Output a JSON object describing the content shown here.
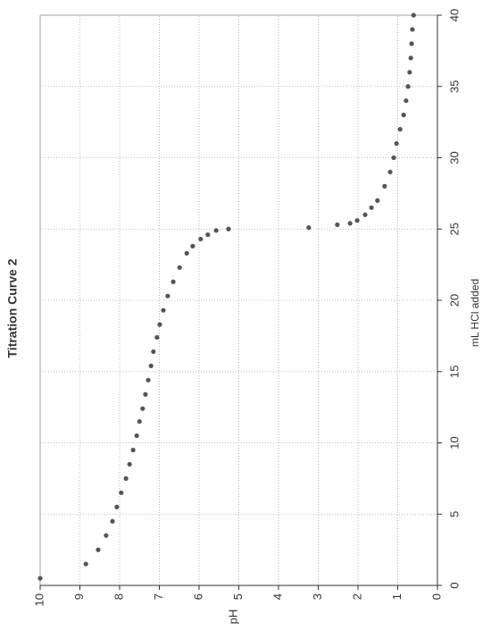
{
  "chart_data": {
    "type": "scatter",
    "title": "Titration Curve 2",
    "x_label": "mL HCl added",
    "y_label": "pH",
    "x": [
      0.5,
      1.5,
      2.5,
      3.5,
      4.5,
      5.5,
      6.5,
      7.5,
      8.5,
      9.5,
      10.5,
      11.5,
      12.4,
      13.4,
      14.4,
      15.4,
      16.4,
      17.4,
      18.3,
      19.3,
      20.3,
      21.3,
      22.3,
      23.3,
      23.8,
      24.3,
      24.6,
      24.9,
      25.0,
      25.1,
      25.3,
      25.4,
      25.6,
      26.0,
      26.5,
      27.0,
      28.0,
      29.0,
      30.0,
      31.0,
      32.0,
      33.0,
      34.0,
      35.0,
      36.0,
      37.0,
      38.0,
      39.0,
      40.0
    ],
    "values": [
      10.0,
      8.85,
      8.54,
      8.34,
      8.18,
      8.07,
      7.96,
      7.84,
      7.75,
      7.66,
      7.57,
      7.5,
      7.42,
      7.35,
      7.28,
      7.21,
      7.15,
      7.06,
      6.99,
      6.9,
      6.79,
      6.65,
      6.49,
      6.31,
      6.16,
      5.96,
      5.78,
      5.57,
      5.26,
      3.24,
      2.52,
      2.2,
      2.02,
      1.82,
      1.66,
      1.51,
      1.33,
      1.19,
      1.1,
      1.03,
      0.94,
      0.85,
      0.79,
      0.74,
      0.7,
      0.67,
      0.65,
      0.63,
      0.6
    ],
    "color": "#555555",
    "xlim": [
      0,
      40
    ],
    "xticks": [
      0,
      5,
      10,
      15,
      20,
      25,
      30,
      35,
      40
    ],
    "ylim": [
      0,
      10
    ],
    "yticks": [
      0,
      1,
      2,
      3,
      4,
      5,
      6,
      7,
      8,
      9,
      10
    ],
    "grid": true
  }
}
